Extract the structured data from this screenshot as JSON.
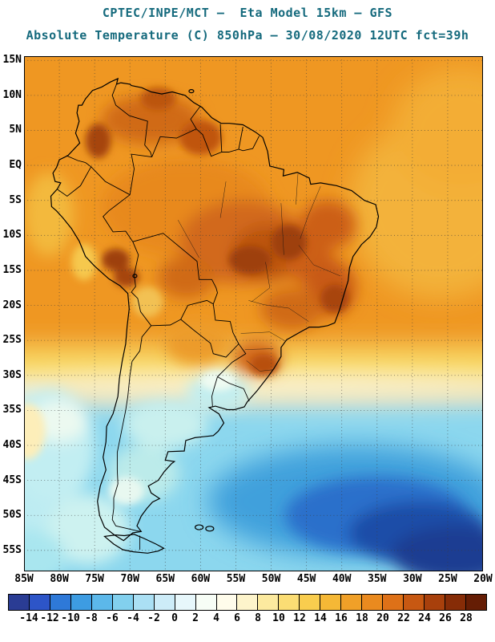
{
  "header": {
    "line1": "CPTEC/INPE/MCT –  Eta Model 15km – GFS",
    "line2": "Absolute Temperature (C) 850hPa – 30/08/2020 12UTC fct=39h",
    "color": "#156a7d"
  },
  "chart_data": {
    "type": "heatmap",
    "title": "CPTEC/INPE/MCT – Eta Model 15km – GFS",
    "variable": "Absolute Temperature",
    "unit": "C",
    "level": "850hPa",
    "valid": "30/08/2020 12UTC",
    "forecast": "fct=39h",
    "lon_ticks": [
      {
        "label": "85W",
        "lon": -85
      },
      {
        "label": "80W",
        "lon": -80
      },
      {
        "label": "75W",
        "lon": -75
      },
      {
        "label": "70W",
        "lon": -70
      },
      {
        "label": "65W",
        "lon": -65
      },
      {
        "label": "60W",
        "lon": -60
      },
      {
        "label": "55W",
        "lon": -55
      },
      {
        "label": "50W",
        "lon": -50
      },
      {
        "label": "45W",
        "lon": -45
      },
      {
        "label": "40W",
        "lon": -40
      },
      {
        "label": "35W",
        "lon": -35
      },
      {
        "label": "30W",
        "lon": -30
      },
      {
        "label": "25W",
        "lon": -25
      },
      {
        "label": "20W",
        "lon": -20
      }
    ],
    "lat_ticks": [
      {
        "label": "15N",
        "lat": 15
      },
      {
        "label": "10N",
        "lat": 10
      },
      {
        "label": "5N",
        "lat": 5
      },
      {
        "label": "EQ",
        "lat": 0
      },
      {
        "label": "5S",
        "lat": -5
      },
      {
        "label": "10S",
        "lat": -10
      },
      {
        "label": "15S",
        "lat": -15
      },
      {
        "label": "20S",
        "lat": -20
      },
      {
        "label": "25S",
        "lat": -25
      },
      {
        "label": "30S",
        "lat": -30
      },
      {
        "label": "35S",
        "lat": -35
      },
      {
        "label": "40S",
        "lat": -40
      },
      {
        "label": "45S",
        "lat": -45
      },
      {
        "label": "50S",
        "lat": -50
      },
      {
        "label": "55S",
        "lat": -55
      }
    ],
    "colorbar": {
      "tick_labels": [
        "-14",
        "-12",
        "-10",
        "-8",
        "-6",
        "-4",
        "-2",
        "0",
        "2",
        "4",
        "6",
        "8",
        "10",
        "12",
        "14",
        "16",
        "18",
        "20",
        "22",
        "24",
        "26",
        "28"
      ],
      "cell_colors": [
        "#2a3c94",
        "#2d55c8",
        "#2e79d8",
        "#3d9ce2",
        "#5cb8ea",
        "#82d0ee",
        "#abe0f4",
        "#cdecf8",
        "#e7f7fb",
        "#f7fdf6",
        "#fffceb",
        "#fdf4cb",
        "#fcea9f",
        "#fbdd74",
        "#f9cd4e",
        "#f5b836",
        "#f0a028",
        "#ea8a1f",
        "#de7118",
        "#c75812",
        "#a8400c",
        "#862c07",
        "#651d04"
      ]
    },
    "field": {
      "base_bands": [
        {
          "from_lat": 16,
          "to_lat": -26,
          "color": "#ef9720",
          "t": 20
        },
        {
          "from_lat": -26,
          "to_lat": -33,
          "color": "#f8d65c",
          "t": 10
        },
        {
          "from_lat": -33,
          "to_lat": -58,
          "color": "#8cd7ee",
          "t": 4
        }
      ],
      "features": [
        {
          "lon": -26,
          "lat": -6,
          "rx": 13,
          "ry": 13,
          "color": "#f3b23a",
          "blur": "lg",
          "t": 17
        },
        {
          "lon": -23,
          "lat": 5,
          "rx": 10,
          "ry": 9,
          "color": "#f3ad34",
          "blur": "lg",
          "t": 18
        },
        {
          "lon": -52,
          "lat": -31.5,
          "rx": 46,
          "ry": 2,
          "color": "#fdf4d4",
          "blur": "lg",
          "t": 7
        },
        {
          "lon": -38,
          "lat": -48,
          "rx": 21,
          "ry": 8,
          "color": "#3fa0dc",
          "blur": "lg",
          "t": -3
        },
        {
          "lon": -85,
          "lat": -45,
          "rx": 7,
          "ry": 12,
          "color": "#bdecf2",
          "blur": "lg",
          "t": 3
        },
        {
          "lon": -62,
          "lat": -6,
          "rx": 12,
          "ry": 7,
          "color": "#e8891c",
          "blur": "md",
          "t": 22
        },
        {
          "lon": -54,
          "lat": -11,
          "rx": 9,
          "ry": 6,
          "color": "#d2691e",
          "blur": "md",
          "t": 24
        },
        {
          "lon": -50.5,
          "lat": -12.5,
          "rx": 5,
          "ry": 4,
          "color": "#bc5410",
          "blur": "md",
          "t": 26
        },
        {
          "lon": -42,
          "lat": -8.5,
          "rx": 4,
          "ry": 3.5,
          "color": "#cc5e13",
          "blur": "md",
          "t": 24
        },
        {
          "lon": -44.5,
          "lat": -14,
          "rx": 3.5,
          "ry": 3,
          "color": "#cc5e13",
          "blur": "md",
          "t": 24
        },
        {
          "lon": -41.5,
          "lat": -17.5,
          "rx": 3.5,
          "ry": 4,
          "color": "#c85a12",
          "blur": "md",
          "t": 25
        },
        {
          "lon": -47,
          "lat": -20.5,
          "rx": 4.5,
          "ry": 3,
          "color": "#d06a14",
          "blur": "md",
          "t": 23
        },
        {
          "lon": -67,
          "lat": 6.5,
          "rx": 7,
          "ry": 3.5,
          "color": "#d06a16",
          "blur": "md",
          "t": 23
        },
        {
          "lon": -62,
          "lat": -16,
          "rx": 4,
          "ry": 3,
          "color": "#d06a14",
          "blur": "md",
          "t": 23
        },
        {
          "lon": -60.5,
          "lat": -25.5,
          "rx": 4.5,
          "ry": 3,
          "color": "#ec9b2a",
          "blur": "md",
          "t": 20
        },
        {
          "lon": -52,
          "lat": -27.5,
          "rx": 3.5,
          "ry": 2.5,
          "color": "#d2691e",
          "blur": "md",
          "t": 23
        },
        {
          "lon": -35,
          "lat": -50,
          "rx": 13,
          "ry": 5.5,
          "color": "#2a6fcb",
          "blur": "md",
          "t": -7
        },
        {
          "lon": -29,
          "lat": -52.5,
          "rx": 10,
          "ry": 4.5,
          "color": "#1f4da8",
          "blur": "md",
          "t": -10
        },
        {
          "lon": -24,
          "lat": -55.5,
          "rx": 9,
          "ry": 4,
          "color": "#1a3c92",
          "blur": "md",
          "t": -13
        },
        {
          "lon": -57.5,
          "lat": -32.5,
          "rx": 4.5,
          "ry": 2.5,
          "color": "#c2eef0",
          "blur": "md",
          "t": 3
        },
        {
          "lon": -81,
          "lat": -40,
          "rx": 6,
          "ry": 8,
          "color": "#c2eef2",
          "blur": "md",
          "t": 3
        },
        {
          "lon": -80,
          "lat": -36.5,
          "rx": 4,
          "ry": 3,
          "color": "#ecf9f0",
          "blur": "md",
          "t": 1
        },
        {
          "lon": -68,
          "lat": -44,
          "rx": 5,
          "ry": 4,
          "color": "#bcebea",
          "blur": "md",
          "t": 2
        },
        {
          "lon": -76,
          "lat": -52,
          "rx": 6,
          "ry": 5,
          "color": "#cdf2f0",
          "blur": "md",
          "t": 2
        },
        {
          "lon": -81.5,
          "lat": -7,
          "rx": 3.5,
          "ry": 6,
          "color": "#f3b93e",
          "blur": "md",
          "t": 16
        },
        {
          "lon": -65,
          "lat": -37,
          "rx": 6,
          "ry": 3.5,
          "color": "#c9f0ee",
          "blur": "md",
          "t": 3
        },
        {
          "lon": -85,
          "lat": -56,
          "rx": 6,
          "ry": 4,
          "color": "#a9e6ef",
          "blur": "md",
          "t": 4
        },
        {
          "lon": -47.5,
          "lat": -11,
          "rx": 2.5,
          "ry": 2.5,
          "color": "#9e3f0a",
          "blur": "sm",
          "t": 27
        },
        {
          "lon": -53,
          "lat": -13.5,
          "rx": 3,
          "ry": 2,
          "color": "#9e3f0a",
          "blur": "sm",
          "t": 27
        },
        {
          "lon": -41,
          "lat": -19,
          "rx": 2,
          "ry": 2,
          "color": "#a84409",
          "blur": "sm",
          "t": 26
        },
        {
          "lon": -74.5,
          "lat": 3.5,
          "rx": 1.8,
          "ry": 2.5,
          "color": "#a64509",
          "blur": "sm",
          "t": 26
        },
        {
          "lon": -72,
          "lat": -13.5,
          "rx": 2,
          "ry": 1.6,
          "color": "#9e3f0a",
          "blur": "sm",
          "t": 27
        },
        {
          "lon": -70.5,
          "lat": -16,
          "rx": 1.8,
          "ry": 1.4,
          "color": "#a64509",
          "blur": "sm",
          "t": 26
        },
        {
          "lon": -60,
          "lat": 4,
          "rx": 3,
          "ry": 2.5,
          "color": "#c05510",
          "blur": "sm",
          "t": 25
        },
        {
          "lon": -66,
          "lat": 9.5,
          "rx": 2.5,
          "ry": 1.6,
          "color": "#bc5410",
          "blur": "sm",
          "t": 26
        },
        {
          "lon": -67.5,
          "lat": -19.5,
          "rx": 2.2,
          "ry": 2.2,
          "color": "#f2c153",
          "blur": "sm",
          "t": 12
        },
        {
          "lon": -57.5,
          "lat": -30.8,
          "rx": 2.5,
          "ry": 1.4,
          "color": "#effbf2",
          "blur": "sm",
          "t": 1
        },
        {
          "lon": -51,
          "lat": -28.5,
          "rx": 2,
          "ry": 1.5,
          "color": "#b8500f",
          "blur": "sm",
          "t": 26
        },
        {
          "lon": -84.5,
          "lat": -38,
          "rx": 2.5,
          "ry": 4,
          "color": "#fdeeb9",
          "blur": "sm",
          "t": 8
        },
        {
          "lon": -70.5,
          "lat": -46.5,
          "rx": 2.5,
          "ry": 2,
          "color": "#e8f8f0",
          "blur": "sm",
          "t": 1
        },
        {
          "lon": -76.5,
          "lat": -13.8,
          "rx": 1.8,
          "ry": 2.6,
          "color": "#f6c84e",
          "blur": "sm",
          "t": 12
        }
      ]
    }
  }
}
